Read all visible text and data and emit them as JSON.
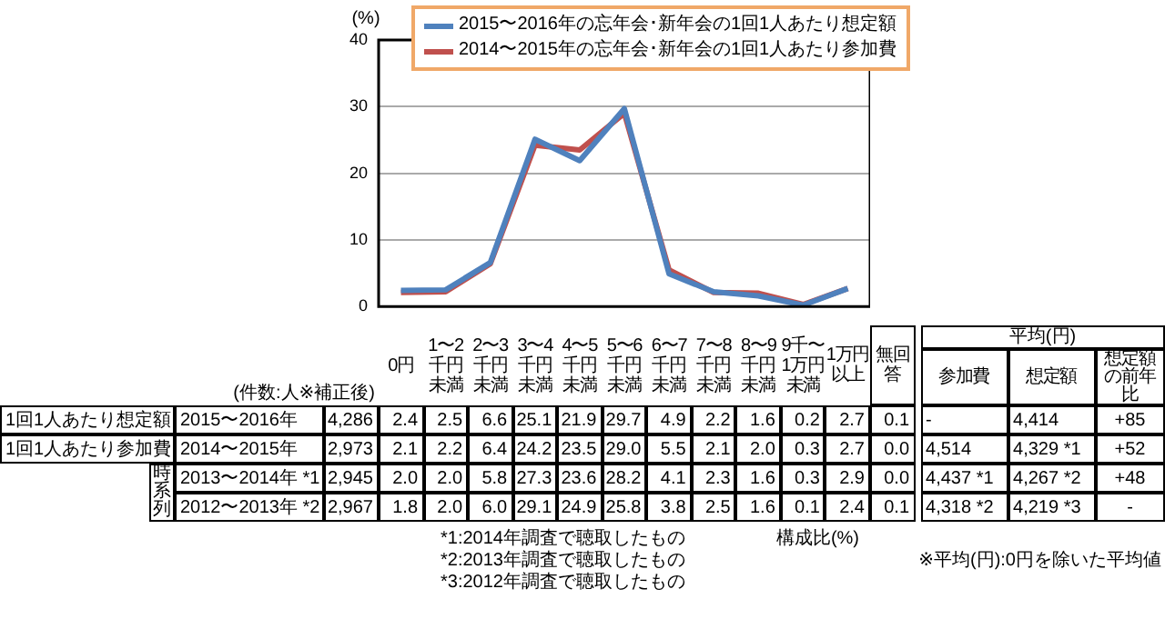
{
  "chart_data": {
    "type": "line",
    "ylabel": "(%)",
    "categories": [
      "0円",
      "1〜2千円未満",
      "2〜3千円未満",
      "3〜4千円未満",
      "4〜5千円未満",
      "5〜6千円未満",
      "6〜7千円未満",
      "7〜8千円未満",
      "8〜9千円未満",
      "9千〜1万円未満",
      "1万円以上"
    ],
    "series": [
      {
        "name": "2015〜2016年の忘年会･新年会の1回1人あたり想定額",
        "color": "#4f81bd",
        "values": [
          2.4,
          2.5,
          6.6,
          25.1,
          21.9,
          29.7,
          4.9,
          2.2,
          1.6,
          0.2,
          2.7
        ]
      },
      {
        "name": "2014〜2015年の忘年会･新年会の1回1人あたり参加費",
        "color": "#c0504d",
        "values": [
          2.1,
          2.2,
          6.4,
          24.2,
          23.5,
          29.0,
          5.5,
          2.1,
          2.0,
          0.3,
          2.7
        ]
      }
    ],
    "ylim": [
      0,
      40
    ],
    "yticks": [
      0,
      10,
      20,
      30,
      40
    ],
    "grid": "y",
    "legend": "top",
    "marker": "none",
    "tick_labels": "y",
    "annotations": [
      "(件数:人※補正後)",
      "無回答",
      "平均(円)",
      "参加費",
      "想定額",
      "想定額の前年比",
      "1回1人あたり想定額",
      "2015〜2016年",
      "4,286",
      "2.4",
      "2.5",
      "6.6",
      "25.1",
      "21.9",
      "29.7",
      "4.9",
      "2.2",
      "1.6",
      "0.2",
      "2.7",
      "0.1",
      "-",
      "4,414",
      "+85",
      "1回1人あたり参加費",
      "2014〜2015年",
      "2,973",
      "2.1",
      "2.2",
      "6.4",
      "24.2",
      "23.5",
      "29.0",
      "5.5",
      "2.1",
      "2.0",
      "0.3",
      "2.7",
      "0.0",
      "4,514",
      "4,329 *1",
      "+52",
      "時系列",
      "2013〜2014年 *1",
      "2,945",
      "2.0",
      "2.0",
      "5.8",
      "27.3",
      "23.6",
      "28.2",
      "4.1",
      "2.3",
      "1.6",
      "0.3",
      "2.9",
      "0.0",
      "4,437 *1",
      "4,267 *2",
      "+48",
      "2012〜2013年 *2",
      "2,967",
      "1.8",
      "2.0",
      "6.0",
      "29.1",
      "24.9",
      "25.8",
      "3.8",
      "2.5",
      "1.6",
      "0.1",
      "2.4",
      "0.1",
      "4,318 *2",
      "4,219 *3",
      "-",
      "*1:2014年調査で聴取したもの",
      "*2:2013年調査で聴取したもの",
      "*3:2012年調査で聴取したもの",
      "構成比(%)",
      "※平均(円):0円を除いた平均値"
    ]
  }
}
